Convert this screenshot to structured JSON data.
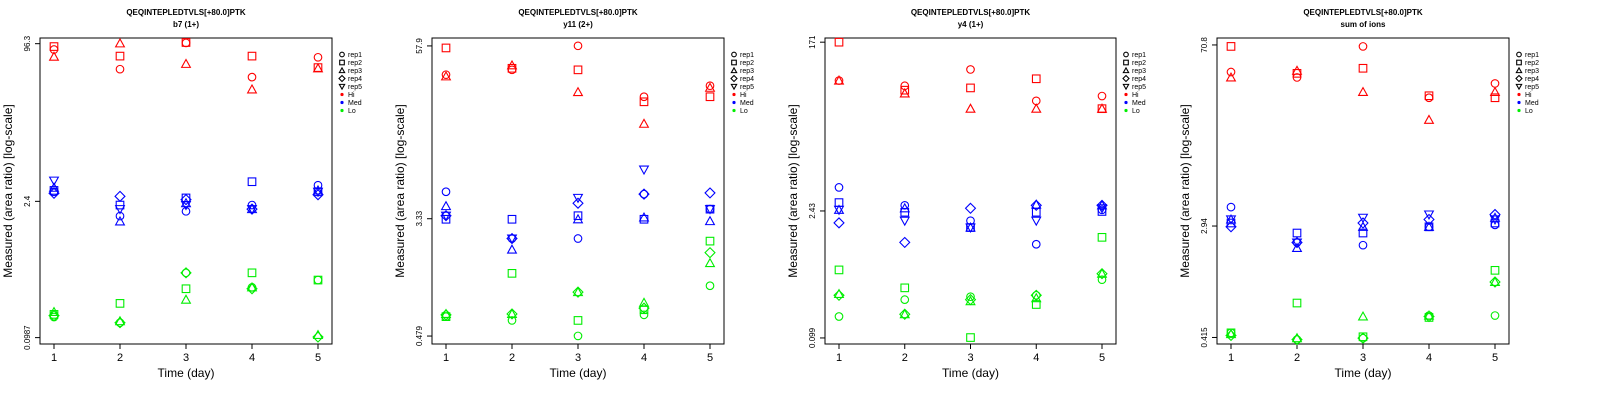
{
  "chart_data": [
    {
      "type": "scatter",
      "title": "QEQINTEPLEDTVLS[+80.0]PTK",
      "subtitle": "b7 (1+)",
      "xlabel": "Time (day)",
      "ylabel": "Measured (area ratio) [log-scale]",
      "yscale": "log",
      "x_ticks": [
        "1",
        "2",
        "3",
        "4",
        "5"
      ],
      "y_ticks": [
        {
          "label": "96.3",
          "value": 96.3
        },
        {
          "label": "2.4",
          "value": 2.4
        },
        {
          "label": "0.0987",
          "value": 0.0987
        }
      ],
      "ylim": [
        0.085,
        110
      ],
      "legend": [
        {
          "label": "rep1",
          "marker": "circle"
        },
        {
          "label": "rep2",
          "marker": "square"
        },
        {
          "label": "rep3",
          "marker": "triangle"
        },
        {
          "label": "rep4",
          "marker": "diamond"
        },
        {
          "label": "rep5",
          "marker": "triangle-down"
        },
        {
          "label": "Hi",
          "color": "#ff0000"
        },
        {
          "label": "Med",
          "color": "#0000ff"
        },
        {
          "label": "Lo",
          "color": "#00ee00"
        }
      ],
      "legend_position": "right",
      "series": [
        {
          "name": "Hi rep1",
          "color": "#ff0000",
          "marker": "circle",
          "values": [
            84,
            53,
            98,
            44,
            70
          ]
        },
        {
          "name": "Hi rep2",
          "color": "#ff0000",
          "marker": "square",
          "values": [
            90,
            72,
            99,
            72,
            55
          ]
        },
        {
          "name": "Hi rep3",
          "color": "#ff0000",
          "marker": "triangle",
          "values": [
            71,
            97,
            60,
            33,
            54
          ]
        },
        {
          "name": "Med rep1",
          "color": "#0000ff",
          "marker": "circle",
          "values": [
            3.0,
            1.7,
            1.9,
            2.2,
            3.5
          ]
        },
        {
          "name": "Med rep2",
          "color": "#0000ff",
          "marker": "square",
          "values": [
            3.1,
            2.2,
            2.6,
            3.8,
            3.0
          ]
        },
        {
          "name": "Med rep3",
          "color": "#0000ff",
          "marker": "triangle",
          "values": [
            3.3,
            1.5,
            2.3,
            2.0,
            3.1
          ]
        },
        {
          "name": "Med rep4",
          "color": "#0000ff",
          "marker": "diamond",
          "values": [
            2.9,
            2.7,
            2.5,
            2.0,
            2.8
          ]
        },
        {
          "name": "Med rep5",
          "color": "#0000ff",
          "marker": "triangle-down",
          "values": [
            3.9,
            2.0,
            2.2,
            2.0,
            3.0
          ]
        },
        {
          "name": "Lo rep1",
          "color": "#00ee00",
          "marker": "circle",
          "values": [
            0.16,
            0.14,
            0.45,
            0.32,
            0.38
          ]
        },
        {
          "name": "Lo rep2",
          "color": "#00ee00",
          "marker": "square",
          "values": [
            0.17,
            0.22,
            0.31,
            0.45,
            0.38
          ]
        },
        {
          "name": "Lo rep3",
          "color": "#00ee00",
          "marker": "triangle",
          "values": [
            0.18,
            0.145,
            0.24,
            0.32,
            0.105
          ]
        },
        {
          "name": "Lo rep4",
          "color": "#00ee00",
          "marker": "diamond",
          "values": [
            0.165,
            0.14,
            0.45,
            0.31,
            0.1
          ]
        }
      ]
    },
    {
      "type": "scatter",
      "title": "QEQINTEPLEDTVLS[+80.0]PTK",
      "subtitle": "y11 (2+)",
      "xlabel": "Time (day)",
      "ylabel": "Measured (area ratio) [log-scale]",
      "yscale": "log",
      "x_ticks": [
        "1",
        "2",
        "3",
        "4",
        "5"
      ],
      "y_ticks": [
        {
          "label": "57.9",
          "value": 57.9
        },
        {
          "label": "3.33",
          "value": 3.33
        },
        {
          "label": "0.479",
          "value": 0.479
        }
      ],
      "ylim": [
        0.42,
        66
      ],
      "legend": [
        {
          "label": "rep1",
          "marker": "circle"
        },
        {
          "label": "rep2",
          "marker": "square"
        },
        {
          "label": "rep3",
          "marker": "triangle"
        },
        {
          "label": "rep4",
          "marker": "diamond"
        },
        {
          "label": "rep5",
          "marker": "triangle-down"
        },
        {
          "label": "Hi",
          "color": "#ff0000"
        },
        {
          "label": "Med",
          "color": "#0000ff"
        },
        {
          "label": "Lo",
          "color": "#00ee00"
        }
      ],
      "legend_position": "right",
      "series": [
        {
          "name": "Hi rep1",
          "color": "#ff0000",
          "marker": "circle",
          "values": [
            36,
            39,
            58,
            25,
            30
          ]
        },
        {
          "name": "Hi rep2",
          "color": "#ff0000",
          "marker": "square",
          "values": [
            56,
            40,
            39,
            23,
            25
          ]
        },
        {
          "name": "Hi rep3",
          "color": "#ff0000",
          "marker": "triangle",
          "values": [
            35,
            42,
            27,
            16,
            29
          ]
        },
        {
          "name": "Med rep1",
          "color": "#0000ff",
          "marker": "circle",
          "values": [
            5.2,
            2.4,
            2.4,
            5.0,
            3.9
          ]
        },
        {
          "name": "Med rep2",
          "color": "#0000ff",
          "marker": "square",
          "values": [
            3.3,
            3.3,
            3.5,
            3.3,
            3.9
          ]
        },
        {
          "name": "Med rep3",
          "color": "#0000ff",
          "marker": "triangle",
          "values": [
            4.1,
            2.0,
            3.3,
            3.4,
            3.2
          ]
        },
        {
          "name": "Med rep4",
          "color": "#0000ff",
          "marker": "diamond",
          "values": [
            3.5,
            2.4,
            4.3,
            5.0,
            5.1
          ]
        },
        {
          "name": "Med rep5",
          "color": "#0000ff",
          "marker": "triangle-down",
          "values": [
            3.5,
            2.4,
            4.7,
            7.5,
            3.9
          ]
        },
        {
          "name": "Lo rep1",
          "color": "#00ee00",
          "marker": "circle",
          "values": [
            0.66,
            0.62,
            0.48,
            0.68,
            1.1
          ]
        },
        {
          "name": "Lo rep2",
          "color": "#00ee00",
          "marker": "square",
          "values": [
            0.66,
            1.35,
            0.62,
            0.74,
            2.3
          ]
        },
        {
          "name": "Lo rep3",
          "color": "#00ee00",
          "marker": "triangle",
          "values": [
            0.69,
            0.69,
            0.99,
            0.83,
            1.6
          ]
        },
        {
          "name": "Lo rep4",
          "color": "#00ee00",
          "marker": "diamond",
          "values": [
            0.68,
            0.69,
            0.99,
            0.76,
            1.9
          ]
        }
      ]
    },
    {
      "type": "scatter",
      "title": "QEQINTEPLEDTVLS[+80.0]PTK",
      "subtitle": "y4 (1+)",
      "xlabel": "Time (day)",
      "ylabel": "Measured (area ratio) [log-scale]",
      "yscale": "log",
      "x_ticks": [
        "1",
        "2",
        "3",
        "4",
        "5"
      ],
      "y_ticks": [
        {
          "label": "171",
          "value": 171
        },
        {
          "label": "2.43",
          "value": 2.43
        },
        {
          "label": "0.099",
          "value": 0.099
        }
      ],
      "ylim": [
        0.085,
        190
      ],
      "legend": [
        {
          "label": "rep1",
          "marker": "circle"
        },
        {
          "label": "rep2",
          "marker": "square"
        },
        {
          "label": "rep3",
          "marker": "triangle"
        },
        {
          "label": "rep4",
          "marker": "diamond"
        },
        {
          "label": "rep5",
          "marker": "triangle-down"
        },
        {
          "label": "Hi",
          "color": "#ff0000"
        },
        {
          "label": "Med",
          "color": "#0000ff"
        },
        {
          "label": "Lo",
          "color": "#00ee00"
        }
      ],
      "legend_position": "right",
      "series": [
        {
          "name": "Hi rep1",
          "color": "#ff0000",
          "marker": "circle",
          "values": [
            65,
            57,
            86,
            39,
            44
          ]
        },
        {
          "name": "Hi rep2",
          "color": "#ff0000",
          "marker": "square",
          "values": [
            171,
            51,
            54,
            68,
            32
          ]
        },
        {
          "name": "Hi rep3",
          "color": "#ff0000",
          "marker": "triangle",
          "values": [
            65,
            47,
            32,
            32,
            32
          ]
        },
        {
          "name": "Med rep1",
          "color": "#0000ff",
          "marker": "circle",
          "values": [
            4.4,
            2.8,
            1.9,
            1.05,
            2.5
          ]
        },
        {
          "name": "Med rep2",
          "color": "#0000ff",
          "marker": "square",
          "values": [
            3.0,
            2.35,
            1.6,
            2.35,
            2.4
          ]
        },
        {
          "name": "Med rep3",
          "color": "#0000ff",
          "marker": "triangle",
          "values": [
            2.5,
            2.6,
            1.6,
            2.85,
            2.8
          ]
        },
        {
          "name": "Med rep4",
          "color": "#0000ff",
          "marker": "diamond",
          "values": [
            1.8,
            1.1,
            2.6,
            2.8,
            2.8
          ]
        },
        {
          "name": "Med rep5",
          "color": "#0000ff",
          "marker": "triangle-down",
          "values": [
            2.5,
            1.9,
            1.6,
            1.9,
            2.6
          ]
        },
        {
          "name": "Lo rep1",
          "color": "#00ee00",
          "marker": "circle",
          "values": [
            0.17,
            0.26,
            0.28,
            0.29,
            0.43
          ]
        },
        {
          "name": "Lo rep2",
          "color": "#00ee00",
          "marker": "square",
          "values": [
            0.55,
            0.35,
            0.1,
            0.23,
            1.25
          ]
        },
        {
          "name": "Lo rep3",
          "color": "#00ee00",
          "marker": "triangle",
          "values": [
            0.3,
            0.18,
            0.25,
            0.27,
            0.5
          ]
        },
        {
          "name": "Lo rep4",
          "color": "#00ee00",
          "marker": "diamond",
          "values": [
            0.29,
            0.18,
            0.26,
            0.29,
            0.5
          ]
        }
      ]
    },
    {
      "type": "scatter",
      "title": "QEQINTEPLEDTVLS[+80.0]PTK",
      "subtitle": "sum of ions",
      "xlabel": "Time (day)",
      "ylabel": "Measured (area ratio) [log-scale]",
      "yscale": "log",
      "x_ticks": [
        "1",
        "2",
        "3",
        "4",
        "5"
      ],
      "y_ticks": [
        {
          "label": "70.8",
          "value": 70.8
        },
        {
          "label": "2.94",
          "value": 2.94
        },
        {
          "label": "0.415",
          "value": 0.415
        }
      ],
      "ylim": [
        0.37,
        80
      ],
      "legend": [
        {
          "label": "rep1",
          "marker": "circle"
        },
        {
          "label": "rep2",
          "marker": "square"
        },
        {
          "label": "rep3",
          "marker": "triangle"
        },
        {
          "label": "rep4",
          "marker": "diamond"
        },
        {
          "label": "rep5",
          "marker": "triangle-down"
        },
        {
          "label": "Hi",
          "color": "#ff0000"
        },
        {
          "label": "Med",
          "color": "#0000ff"
        },
        {
          "label": "Lo",
          "color": "#00ee00"
        }
      ],
      "legend_position": "right",
      "series": [
        {
          "name": "Hi rep1",
          "color": "#ff0000",
          "marker": "circle",
          "values": [
            44,
            40,
            69,
            28,
            36
          ]
        },
        {
          "name": "Hi rep2",
          "color": "#ff0000",
          "marker": "square",
          "values": [
            69,
            43,
            47,
            29,
            28
          ]
        },
        {
          "name": "Hi rep3",
          "color": "#ff0000",
          "marker": "triangle",
          "values": [
            40,
            45,
            31,
            19,
            31
          ]
        },
        {
          "name": "Med rep1",
          "color": "#0000ff",
          "marker": "circle",
          "values": [
            4.1,
            2.2,
            2.1,
            2.9,
            3.0
          ]
        },
        {
          "name": "Med rep2",
          "color": "#0000ff",
          "marker": "square",
          "values": [
            3.1,
            2.6,
            2.6,
            2.9,
            3.1
          ]
        },
        {
          "name": "Med rep3",
          "color": "#0000ff",
          "marker": "triangle",
          "values": [
            3.3,
            2.0,
            2.9,
            2.9,
            3.4
          ]
        },
        {
          "name": "Med rep4",
          "color": "#0000ff",
          "marker": "diamond",
          "values": [
            2.9,
            2.2,
            3.1,
            3.3,
            3.6
          ]
        },
        {
          "name": "Med rep5",
          "color": "#0000ff",
          "marker": "triangle-down",
          "values": [
            3.3,
            2.2,
            3.4,
            3.6,
            3.3
          ]
        },
        {
          "name": "Lo rep1",
          "color": "#00ee00",
          "marker": "circle",
          "values": [
            0.45,
            0.4,
            0.41,
            0.61,
            0.61
          ]
        },
        {
          "name": "Lo rep2",
          "color": "#00ee00",
          "marker": "square",
          "values": [
            0.45,
            0.76,
            0.42,
            0.59,
            1.35
          ]
        },
        {
          "name": "Lo rep3",
          "color": "#00ee00",
          "marker": "triangle",
          "values": [
            0.44,
            0.41,
            0.6,
            0.61,
            1.1
          ]
        },
        {
          "name": "Lo rep4",
          "color": "#00ee00",
          "marker": "diamond",
          "values": [
            0.43,
            0.4,
            0.41,
            0.6,
            1.1
          ]
        }
      ]
    }
  ]
}
